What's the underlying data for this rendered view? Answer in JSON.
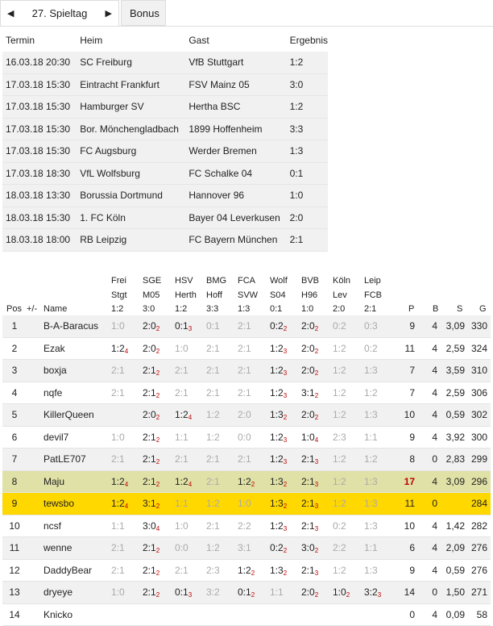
{
  "nav": {
    "prev_icon": "◀",
    "next_icon": "▶",
    "matchday_label": "27. Spieltag",
    "bonus_tab": "Bonus"
  },
  "matches": {
    "headers": [
      "Termin",
      "Heim",
      "Gast",
      "Ergebnis"
    ],
    "rows": [
      [
        "16.03.18 20:30",
        "SC Freiburg",
        "VfB Stuttgart",
        "1:2"
      ],
      [
        "17.03.18 15:30",
        "Eintracht Frankfurt",
        "FSV Mainz 05",
        "3:0"
      ],
      [
        "17.03.18 15:30",
        "Hamburger SV",
        "Hertha BSC",
        "1:2"
      ],
      [
        "17.03.18 15:30",
        "Bor. Mönchengladbach",
        "1899 Hoffenheim",
        "3:3"
      ],
      [
        "17.03.18 15:30",
        "FC Augsburg",
        "Werder Bremen",
        "1:3"
      ],
      [
        "17.03.18 18:30",
        "VfL Wolfsburg",
        "FC Schalke 04",
        "0:1"
      ],
      [
        "18.03.18 13:30",
        "Borussia Dortmund",
        "Hannover 96",
        "1:0"
      ],
      [
        "18.03.18 15:30",
        "1. FC Köln",
        "Bayer 04 Leverkusen",
        "2:0"
      ],
      [
        "18.03.18 18:00",
        "RB Leipzig",
        "FC Bayern München",
        "2:1"
      ]
    ]
  },
  "standings": {
    "games": [
      {
        "home": "Frei",
        "away": "Stgt",
        "result": "1:2"
      },
      {
        "home": "SGE",
        "away": "M05",
        "result": "3:0"
      },
      {
        "home": "HSV",
        "away": "Herth",
        "result": "1:2"
      },
      {
        "home": "BMG",
        "away": "Hoff",
        "result": "3:3"
      },
      {
        "home": "FCA",
        "away": "SVW",
        "result": "1:3"
      },
      {
        "home": "Wolf",
        "away": "S04",
        "result": "0:1"
      },
      {
        "home": "BVB",
        "away": "H96",
        "result": "1:0"
      },
      {
        "home": "Köln",
        "away": "Lev",
        "result": "2:0"
      },
      {
        "home": "Leip",
        "away": "FCB",
        "result": "2:1"
      }
    ],
    "col_headers": {
      "pos": "Pos",
      "change": "+/-",
      "name": "Name",
      "p": "P",
      "b": "B",
      "s": "S",
      "g": "G"
    },
    "rows": [
      {
        "pos": "1",
        "change": "",
        "name": "B-A-Baracus",
        "tips": [
          [
            "1:0",
            ""
          ],
          [
            "2:0",
            "2"
          ],
          [
            "0:1",
            "3"
          ],
          [
            "0:1",
            ""
          ],
          [
            "2:1",
            ""
          ],
          [
            "0:2",
            "2"
          ],
          [
            "2:0",
            "2"
          ],
          [
            "0:2",
            ""
          ],
          [
            "0:3",
            ""
          ]
        ],
        "p": "9",
        "b": "4",
        "s": "3,09",
        "g": "330",
        "style": "shade"
      },
      {
        "pos": "2",
        "change": "",
        "name": "Ezak",
        "tips": [
          [
            "1:2",
            "4"
          ],
          [
            "2:0",
            "2"
          ],
          [
            "1:0",
            ""
          ],
          [
            "2:1",
            ""
          ],
          [
            "2:1",
            ""
          ],
          [
            "1:2",
            "3"
          ],
          [
            "2:0",
            "2"
          ],
          [
            "1:2",
            ""
          ],
          [
            "0:2",
            ""
          ]
        ],
        "p": "11",
        "b": "4",
        "s": "2,59",
        "g": "324",
        "style": ""
      },
      {
        "pos": "3",
        "change": "",
        "name": "boxja",
        "tips": [
          [
            "2:1",
            ""
          ],
          [
            "2:1",
            "2"
          ],
          [
            "2:1",
            ""
          ],
          [
            "2:1",
            ""
          ],
          [
            "2:1",
            ""
          ],
          [
            "1:2",
            "3"
          ],
          [
            "2:0",
            "2"
          ],
          [
            "1:2",
            ""
          ],
          [
            "1:3",
            ""
          ]
        ],
        "p": "7",
        "b": "4",
        "s": "3,59",
        "g": "310",
        "style": "shade"
      },
      {
        "pos": "4",
        "change": "",
        "name": "nqfe",
        "tips": [
          [
            "2:1",
            ""
          ],
          [
            "2:1",
            "2"
          ],
          [
            "2:1",
            ""
          ],
          [
            "2:1",
            ""
          ],
          [
            "2:1",
            ""
          ],
          [
            "1:2",
            "3"
          ],
          [
            "3:1",
            "2"
          ],
          [
            "1:2",
            ""
          ],
          [
            "1:2",
            ""
          ]
        ],
        "p": "7",
        "b": "4",
        "s": "2,59",
        "g": "306",
        "style": ""
      },
      {
        "pos": "5",
        "change": "",
        "name": "KillerQueen",
        "tips": [
          [
            "",
            ""
          ],
          [
            "2:0",
            "2"
          ],
          [
            "1:2",
            "4"
          ],
          [
            "1:2",
            ""
          ],
          [
            "2:0",
            ""
          ],
          [
            "1:3",
            "2"
          ],
          [
            "2:0",
            "2"
          ],
          [
            "1:2",
            ""
          ],
          [
            "1:3",
            ""
          ]
        ],
        "p": "10",
        "b": "4",
        "s": "0,59",
        "g": "302",
        "style": "shade"
      },
      {
        "pos": "6",
        "change": "",
        "name": "devil7",
        "tips": [
          [
            "1:0",
            ""
          ],
          [
            "2:1",
            "2"
          ],
          [
            "1:1",
            ""
          ],
          [
            "1:2",
            ""
          ],
          [
            "0:0",
            ""
          ],
          [
            "1:2",
            "3"
          ],
          [
            "1:0",
            "4"
          ],
          [
            "2:3",
            ""
          ],
          [
            "1:1",
            ""
          ]
        ],
        "p": "9",
        "b": "4",
        "s": "3,92",
        "g": "300",
        "style": ""
      },
      {
        "pos": "7",
        "change": "",
        "name": "PatLE707",
        "tips": [
          [
            "2:1",
            ""
          ],
          [
            "2:1",
            "2"
          ],
          [
            "2:1",
            ""
          ],
          [
            "2:1",
            ""
          ],
          [
            "2:1",
            ""
          ],
          [
            "1:2",
            "3"
          ],
          [
            "2:1",
            "3"
          ],
          [
            "1:2",
            ""
          ],
          [
            "1:2",
            ""
          ]
        ],
        "p": "8",
        "b": "0",
        "s": "2,83",
        "g": "299",
        "style": "shade"
      },
      {
        "pos": "8",
        "change": "",
        "name": "Maju",
        "tips": [
          [
            "1:2",
            "4"
          ],
          [
            "2:1",
            "2"
          ],
          [
            "1:2",
            "4"
          ],
          [
            "2:1",
            ""
          ],
          [
            "1:2",
            "2"
          ],
          [
            "1:3",
            "2"
          ],
          [
            "2:1",
            "3"
          ],
          [
            "1:2",
            ""
          ],
          [
            "1:3",
            ""
          ]
        ],
        "p": "17",
        "b": "4",
        "s": "3,09",
        "g": "296",
        "style": "hl-green",
        "p_red": true
      },
      {
        "pos": "9",
        "change": "",
        "name": "tewsbo",
        "tips": [
          [
            "1:2",
            "4"
          ],
          [
            "3:1",
            "2"
          ],
          [
            "1:1",
            ""
          ],
          [
            "1:2",
            ""
          ],
          [
            "1:0",
            ""
          ],
          [
            "1:3",
            "2"
          ],
          [
            "2:1",
            "3"
          ],
          [
            "1:2",
            ""
          ],
          [
            "1:3",
            ""
          ]
        ],
        "p": "11",
        "b": "0",
        "s": "",
        "g": "284",
        "style": "hl-yellow"
      },
      {
        "pos": "10",
        "change": "",
        "name": "ncsf",
        "tips": [
          [
            "1:1",
            ""
          ],
          [
            "3:0",
            "4"
          ],
          [
            "1:0",
            ""
          ],
          [
            "2:1",
            ""
          ],
          [
            "2:2",
            ""
          ],
          [
            "1:2",
            "3"
          ],
          [
            "2:1",
            "3"
          ],
          [
            "0:2",
            ""
          ],
          [
            "1:3",
            ""
          ]
        ],
        "p": "10",
        "b": "4",
        "s": "1,42",
        "g": "282",
        "style": ""
      },
      {
        "pos": "11",
        "change": "",
        "name": "wenne",
        "tips": [
          [
            "2:1",
            ""
          ],
          [
            "2:1",
            "2"
          ],
          [
            "0:0",
            ""
          ],
          [
            "1:2",
            ""
          ],
          [
            "3:1",
            ""
          ],
          [
            "0:2",
            "2"
          ],
          [
            "3:0",
            "2"
          ],
          [
            "2:2",
            ""
          ],
          [
            "1:1",
            ""
          ]
        ],
        "p": "6",
        "b": "4",
        "s": "2,09",
        "g": "276",
        "style": "shade"
      },
      {
        "pos": "12",
        "change": "",
        "name": "DaddyBear",
        "tips": [
          [
            "2:1",
            ""
          ],
          [
            "2:1",
            "2"
          ],
          [
            "2:1",
            ""
          ],
          [
            "2:3",
            ""
          ],
          [
            "1:2",
            "2"
          ],
          [
            "1:3",
            "2"
          ],
          [
            "2:1",
            "3"
          ],
          [
            "1:2",
            ""
          ],
          [
            "1:3",
            ""
          ]
        ],
        "p": "9",
        "b": "4",
        "s": "0,59",
        "g": "276",
        "style": ""
      },
      {
        "pos": "13",
        "change": "",
        "name": "dryeye",
        "tips": [
          [
            "1:0",
            ""
          ],
          [
            "2:1",
            "2"
          ],
          [
            "0:1",
            "3"
          ],
          [
            "3:2",
            ""
          ],
          [
            "0:1",
            "2"
          ],
          [
            "1:1",
            ""
          ],
          [
            "2:0",
            "2"
          ],
          [
            "1:0",
            "2"
          ],
          [
            "3:2",
            "3"
          ]
        ],
        "p": "14",
        "b": "0",
        "s": "1,50",
        "g": "271",
        "style": "shade"
      },
      {
        "pos": "14",
        "change": "",
        "name": "Knicko",
        "tips": [
          [
            "",
            ""
          ],
          [
            "",
            ""
          ],
          [
            "",
            ""
          ],
          [
            "",
            ""
          ],
          [
            "",
            ""
          ],
          [
            "",
            ""
          ],
          [
            "",
            ""
          ],
          [
            "",
            ""
          ],
          [
            "",
            ""
          ]
        ],
        "p": "0",
        "b": "4",
        "s": "0,09",
        "g": "58",
        "style": ""
      }
    ]
  }
}
